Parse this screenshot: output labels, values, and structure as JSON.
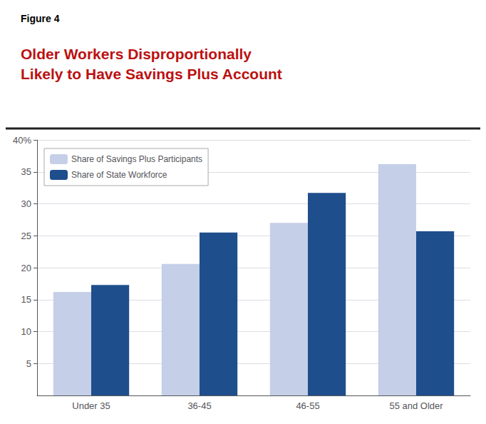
{
  "chart_data": {
    "type": "bar",
    "title": "Older Workers Disproportionally\nLikely to Have Savings Plus Account",
    "annotations": [
      "Figure 4"
    ],
    "categories": [
      "Under 35",
      "36-45",
      "46-55",
      "55 and Older"
    ],
    "series": [
      {
        "name": "Share of Savings Plus Participants",
        "color": "#c5cfe8",
        "values": [
          16.2,
          20.6,
          27.0,
          36.2
        ]
      },
      {
        "name": "Share of State Workforce",
        "color": "#1f4e8c",
        "values": [
          17.3,
          25.5,
          31.7,
          25.7
        ]
      }
    ],
    "ylim": [
      0,
      40
    ],
    "yticks": [
      5,
      10,
      15,
      20,
      25,
      30,
      35,
      {
        "value": 40,
        "label": "40%"
      }
    ],
    "grid": true,
    "legend": "upper left"
  }
}
